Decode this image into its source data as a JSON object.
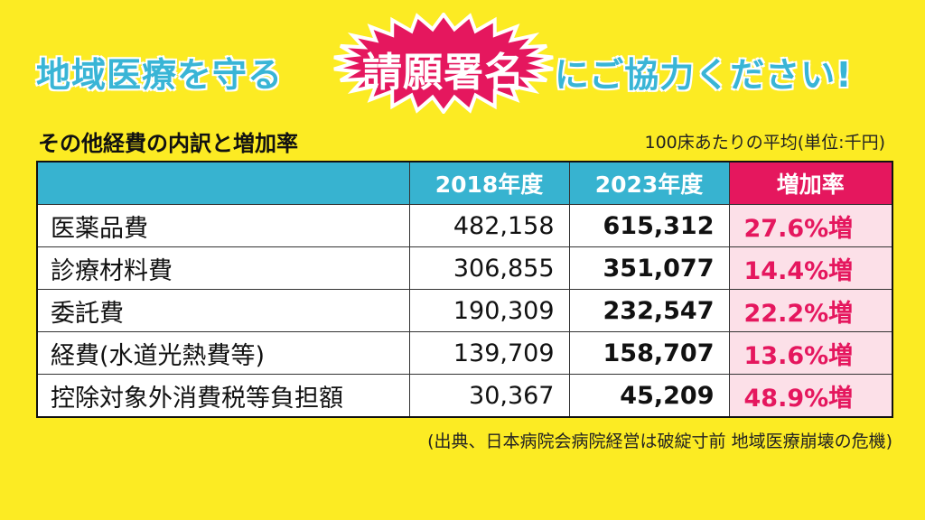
{
  "headline": {
    "left": "地域医療を守る",
    "emphasis": "請願署名",
    "right": "にご協力ください!",
    "colors": {
      "blue": "#39B5D6",
      "burst_red": "#E5175E",
      "background": "#FCEB23"
    }
  },
  "section_title": "その他経費の内訳と増加率",
  "unit_note": "100床あたりの平均(単位:千円)",
  "source": "(出典、日本病院会病院経営は破綻寸前 地域医療崩壊の危機)",
  "chart_data": {
    "type": "table",
    "title": "その他経費の内訳と増加率",
    "columns": [
      "",
      "2018年度",
      "2023年度",
      "増加率"
    ],
    "rows": [
      {
        "item": "医薬品費",
        "y2018": "482,158",
        "y2023": "615,312",
        "rate": "27.6%増"
      },
      {
        "item": "診療材料費",
        "y2018": "306,855",
        "y2023": "351,077",
        "rate": "14.4%増"
      },
      {
        "item": "委託費",
        "y2018": "190,309",
        "y2023": "232,547",
        "rate": "22.2%増"
      },
      {
        "item": "経費(水道光熱費等)",
        "y2018": "139,709",
        "y2023": "158,707",
        "rate": "13.6%増"
      },
      {
        "item": "控除対象外消費税等負担額",
        "y2018": "30,367",
        "y2023": "45,209",
        "rate": "48.9%増"
      }
    ]
  }
}
